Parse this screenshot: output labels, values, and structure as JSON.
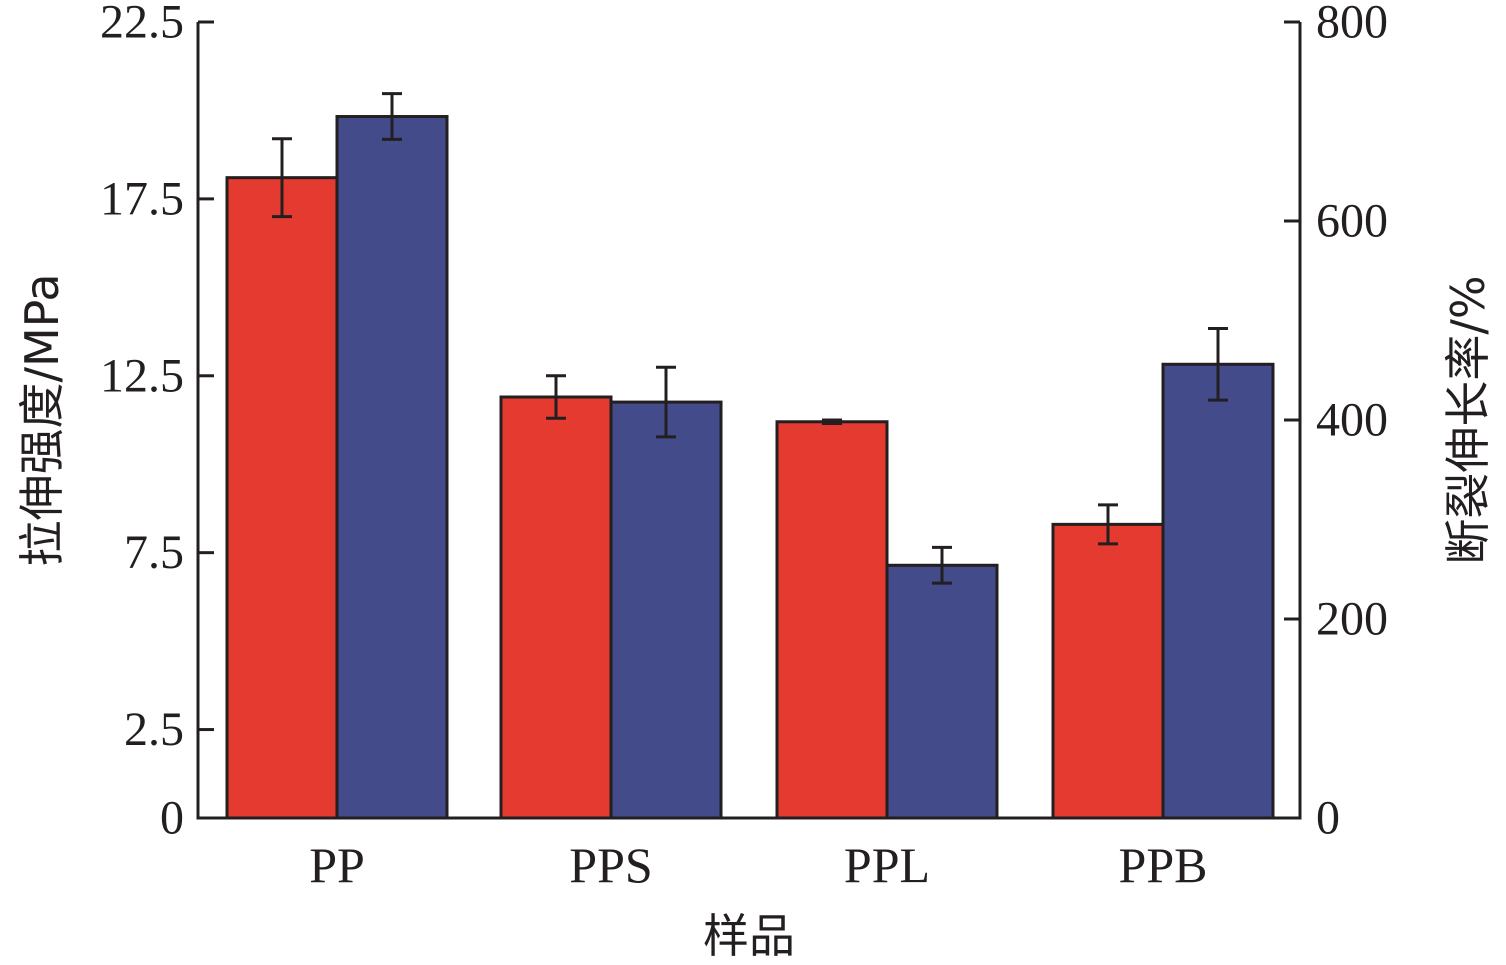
{
  "chart_data": {
    "type": "bar",
    "categories": [
      "PP",
      "PPS",
      "PPL",
      "PPB"
    ],
    "xlabel": "样品",
    "ylabel": "拉伸强度/MPa",
    "y2label": "断裂伸长率/%",
    "ylim": [
      0,
      22.5
    ],
    "yticks": [
      "0",
      "2.5",
      "7.5",
      "12.5",
      "17.5",
      "22.5"
    ],
    "y2lim": [
      0,
      800
    ],
    "y2ticks": [
      "0",
      "200",
      "400",
      "600",
      "800"
    ],
    "series": [
      {
        "axis": "left",
        "color": "#e53a2f",
        "values": [
          18.1,
          11.9,
          11.2,
          8.3
        ],
        "errors": [
          1.1,
          0.6,
          0.05,
          0.55
        ]
      },
      {
        "axis": "right",
        "color": "#434b8a",
        "values": [
          705,
          418,
          254,
          456
        ],
        "errors": [
          23,
          35,
          18,
          36
        ]
      }
    ],
    "grid": false,
    "legend": "none"
  }
}
